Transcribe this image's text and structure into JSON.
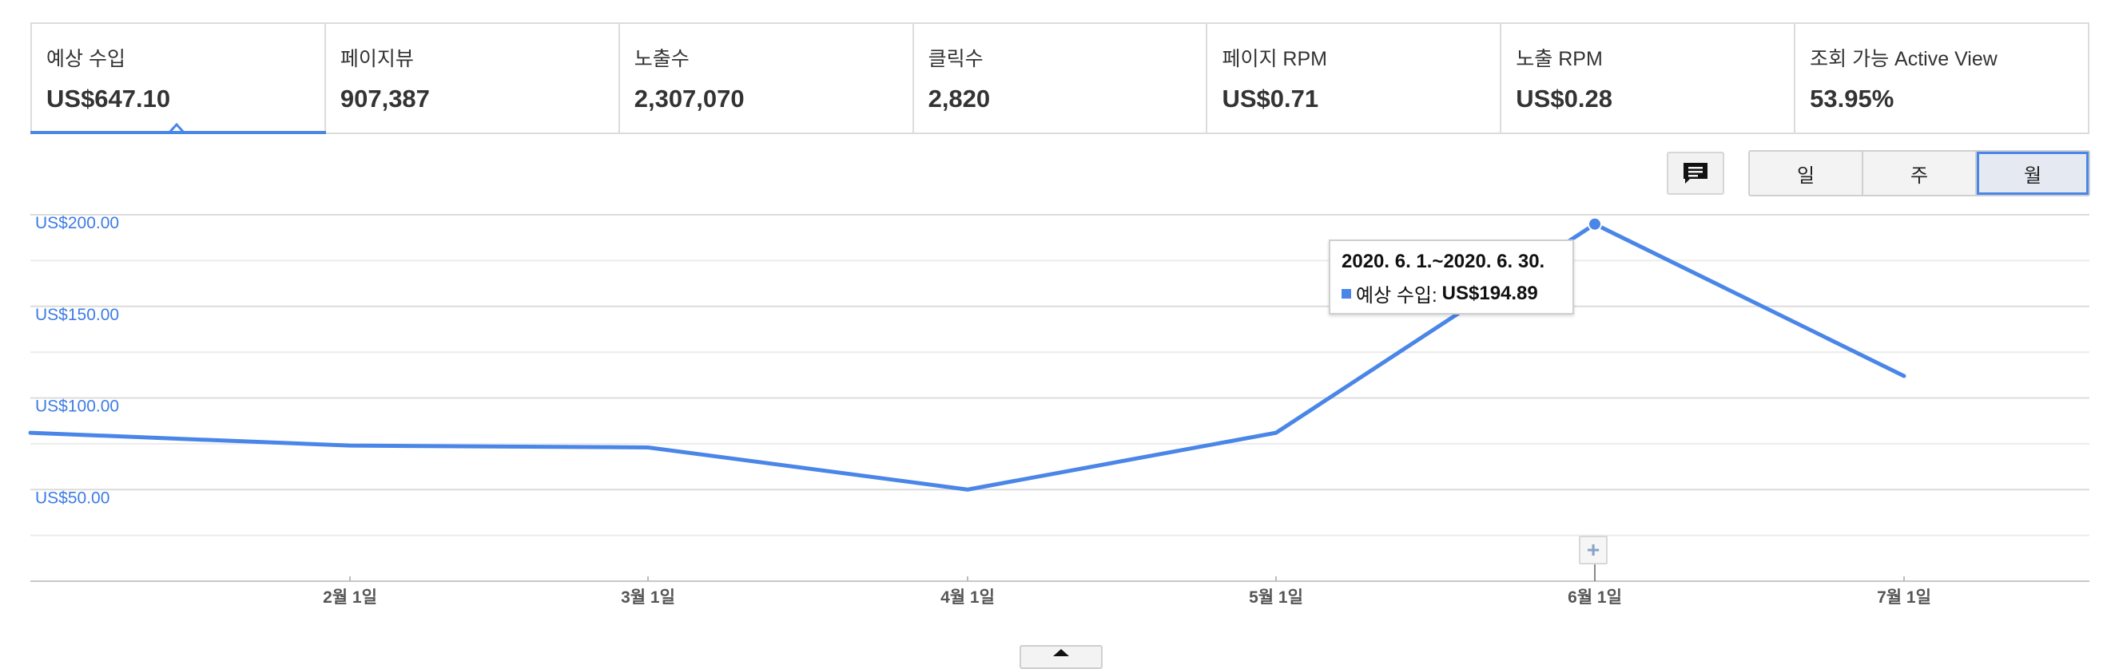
{
  "metrics": [
    {
      "label": "예상 수입",
      "value": "US$647.10"
    },
    {
      "label": "페이지뷰",
      "value": "907,387"
    },
    {
      "label": "노출수",
      "value": "2,307,070"
    },
    {
      "label": "클릭수",
      "value": "2,820"
    },
    {
      "label": "페이지 RPM",
      "value": "US$0.71"
    },
    {
      "label": "노출 RPM",
      "value": "US$0.28"
    },
    {
      "label": "조회 가능 Active View",
      "value": "53.95%"
    }
  ],
  "period_buttons": [
    "일",
    "주",
    "월"
  ],
  "selected_period": "월",
  "icons": {
    "comment": "comment-icon",
    "annotation": "plus-icon",
    "expand": "caret-up-icon"
  },
  "colors": {
    "accent": "#4a86e8",
    "axis_text": "#3d7ce4"
  },
  "tooltip": {
    "title": "2020. 6. 1.~2020. 6. 30.",
    "series_label": "예상 수입:",
    "value": "US$194.89"
  },
  "chart_data": {
    "type": "line",
    "x": [
      "2020-01-01",
      "2020-02-01",
      "2020-03-01",
      "2020-04-01",
      "2020-05-01",
      "2020-06-01",
      "2020-07-01"
    ],
    "x_tick_labels": [
      "2월 1일",
      "3월 1일",
      "4월 1일",
      "5월 1일",
      "6월 1일",
      "7월 1일"
    ],
    "series": [
      {
        "values": [
          81,
          74,
          73,
          50,
          81,
          194.89,
          112
        ],
        "color": "#4a86e8"
      }
    ],
    "y_tick_labels": [
      "US$200.00",
      "US$150.00",
      "US$100.00",
      "US$50.00"
    ],
    "y_ticks": [
      200,
      150,
      100,
      50
    ],
    "ylim": [
      0,
      200
    ],
    "grid": true,
    "highlight_index": 5
  }
}
